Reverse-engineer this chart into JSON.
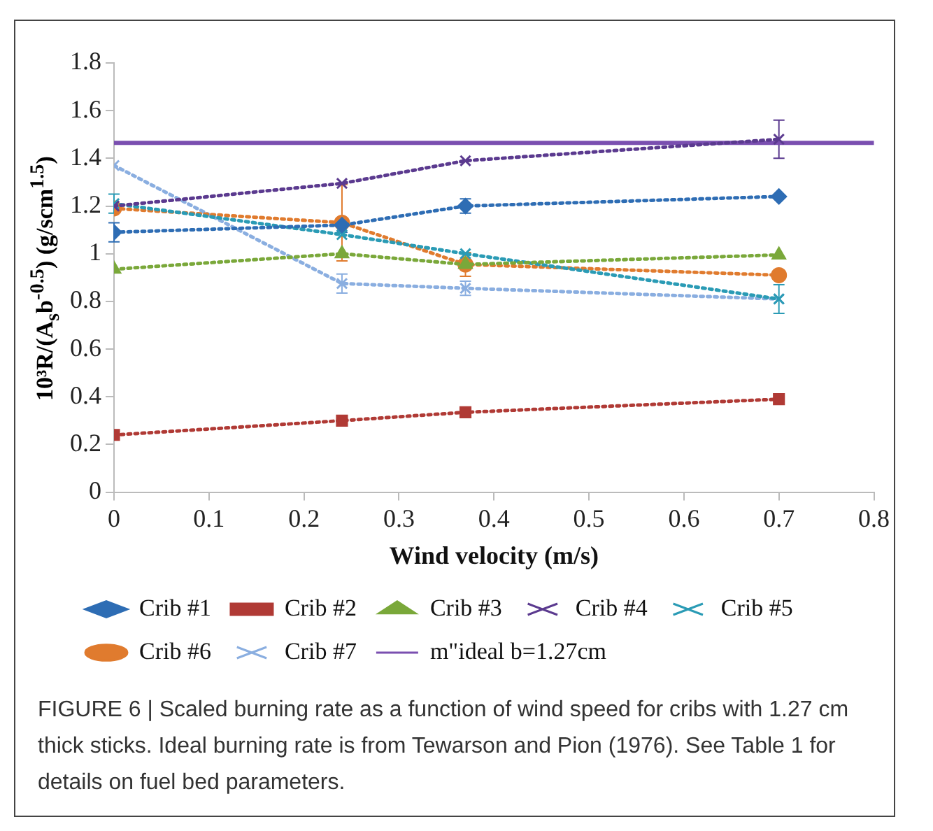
{
  "chart_data": {
    "type": "line",
    "xlabel": "Wind velocity (m/s)",
    "ylabel": "10³R/(A$_{s}$b$^{-0.5}$) (g/scm$^{1.5}$)",
    "x": [
      0,
      0.24,
      0.37,
      0.7
    ],
    "xlim": [
      0,
      0.8
    ],
    "xticks": [
      0,
      0.1,
      0.2,
      0.3,
      0.4,
      0.5,
      0.6,
      0.7,
      0.8
    ],
    "ylim": [
      0,
      1.8
    ],
    "yticks": [
      0,
      0.2,
      0.4,
      0.6,
      0.8,
      1,
      1.2,
      1.4,
      1.6,
      1.8
    ],
    "grid": false,
    "legend": "bottom",
    "line_style": "dotted",
    "series": [
      {
        "name": "Crib #1",
        "color": "#2e6db4",
        "marker": "diamond",
        "values": [
          1.09,
          1.12,
          1.2,
          1.24
        ],
        "errors": [
          0.04,
          0.03,
          0.03,
          null
        ]
      },
      {
        "name": "Crib #2",
        "color": "#b03a35",
        "marker": "square",
        "values": [
          0.24,
          0.3,
          0.335,
          0.39
        ]
      },
      {
        "name": "Crib #3",
        "color": "#7aa83a",
        "marker": "triangle",
        "values": [
          0.935,
          1.0,
          0.955,
          0.995
        ]
      },
      {
        "name": "Crib #4",
        "color": "#5b3a8f",
        "marker": "cross",
        "values": [
          1.2,
          1.295,
          1.39,
          1.48
        ],
        "errors": [
          null,
          null,
          null,
          0.08
        ]
      },
      {
        "name": "Crib #5",
        "color": "#2a9bb5",
        "marker": "cross",
        "values": [
          1.21,
          1.08,
          1.0,
          0.81
        ],
        "errors": [
          0.04,
          null,
          null,
          0.06
        ]
      },
      {
        "name": "Crib #6",
        "color": "#e07b2e",
        "marker": "circle",
        "values": [
          1.19,
          1.13,
          0.955,
          0.91
        ],
        "errors": [
          null,
          0.16,
          0.05,
          null
        ]
      },
      {
        "name": "Crib #7",
        "color": "#8aaee0",
        "marker": "cross",
        "values": [
          1.37,
          0.875,
          0.855,
          0.81
        ],
        "errors": [
          null,
          0.04,
          0.03,
          null
        ]
      },
      {
        "name": "m\"ideal b=1.27cm",
        "color": "#7a4fb0",
        "marker": "none",
        "line_style": "solid",
        "x": [
          0,
          0.8
        ],
        "values": [
          1.465,
          1.465
        ]
      }
    ],
    "annotations": [
      "FIGURE 6 | Scaled burning rate as a function of wind speed for cribs with 1.27 cm thick sticks. Ideal burning rate is from Tewarson and Pion (1976). See Table 1 for details on fuel bed parameters."
    ]
  }
}
